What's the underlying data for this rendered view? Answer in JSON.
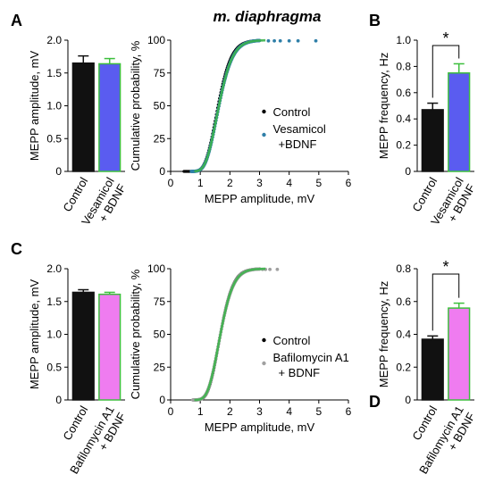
{
  "figure_title": "m. diaphragma",
  "colors": {
    "black_bar": "#111111",
    "blue_bar": "#5a5cf0",
    "pink_bar": "#ef7cf0",
    "bar_edge_green": "#3dbf3d",
    "control_dots": "#000000",
    "vesamicol_dots": "#2f7fa8",
    "bafilomycin_dots": "#a0a0a0",
    "cdf_green": "#3cb44b"
  },
  "chart_data": [
    {
      "id": "A",
      "panel": "A",
      "type": "bar",
      "categories": [
        "Control",
        "Vesamicol\n+ BDNF"
      ],
      "values": [
        1.65,
        1.64
      ],
      "errors": [
        0.11,
        0.08
      ],
      "ylabel": "MEPP amplitude, mV",
      "ylim": [
        0,
        2.0
      ],
      "yticks": [
        "0",
        "0.5",
        "1.0",
        "1.5",
        "2.0"
      ],
      "yticks_values": [
        0,
        0.5,
        1.0,
        1.5,
        2.0
      ]
    },
    {
      "id": "A_cdf",
      "type": "scatter",
      "title": "m. diaphragma",
      "xlabel": "MEPP amplitude, mV",
      "ylabel": "Cumulative probability, %",
      "xlim": [
        0,
        6
      ],
      "ylim": [
        0,
        100
      ],
      "xticks": [
        "0",
        "1",
        "2",
        "3",
        "4",
        "5",
        "6"
      ],
      "yticks": [
        "0",
        "25",
        "50",
        "75",
        "100"
      ],
      "legend": [
        "Control",
        "Vesamicol\n+BDNF"
      ],
      "series": [
        {
          "name": "Control",
          "dist": {
            "mu": 1.6,
            "sigma": 0.35,
            "xmin": 0.45,
            "xmax": 3.0,
            "n": 120
          }
        },
        {
          "name": "Vesamicol +BDNF",
          "dist": {
            "mu": 1.63,
            "sigma": 0.36,
            "xmin": 0.7,
            "xmax": 4.9,
            "n": 120
          },
          "tail": [
            3.3,
            3.5,
            3.7,
            4.0,
            4.3,
            4.9
          ]
        }
      ]
    },
    {
      "id": "B",
      "panel": "B",
      "type": "bar",
      "categories": [
        "Control",
        "Vesamicol\n+ BDNF"
      ],
      "values": [
        0.47,
        0.75
      ],
      "errors": [
        0.05,
        0.07
      ],
      "ylabel": "MEPP frequency, Hz",
      "ylim": [
        0,
        1.0
      ],
      "yticks": [
        "0",
        "0.2",
        "0.4",
        "0.6",
        "0.8",
        "1.0"
      ],
      "yticks_values": [
        0,
        0.2,
        0.4,
        0.6,
        0.8,
        1.0
      ],
      "significance": "*"
    },
    {
      "id": "C",
      "panel": "C",
      "type": "bar",
      "categories": [
        "Control",
        "Bafilomycin A1\n+ BDNF"
      ],
      "values": [
        1.64,
        1.61
      ],
      "errors": [
        0.04,
        0.03
      ],
      "ylabel": "MEPP amplitude, mV",
      "ylim": [
        0,
        2.0
      ],
      "yticks": [
        "0",
        "0.5",
        "1.0",
        "1.5",
        "2.0"
      ],
      "yticks_values": [
        0,
        0.5,
        1.0,
        1.5,
        2.0
      ]
    },
    {
      "id": "C_cdf",
      "type": "scatter",
      "xlabel": "MEPP amplitude, mV",
      "ylabel": "Cumulative probability, %",
      "xlim": [
        0,
        6
      ],
      "ylim": [
        0,
        100
      ],
      "xticks": [
        "0",
        "1",
        "2",
        "3",
        "4",
        "5",
        "6"
      ],
      "yticks": [
        "0",
        "25",
        "50",
        "75",
        "100"
      ],
      "legend": [
        "Control",
        "Bafilomycin A1\n+ BDNF"
      ],
      "series": [
        {
          "name": "Control",
          "dist": {
            "mu": 1.68,
            "sigma": 0.33,
            "xmin": 0.75,
            "xmax": 3.0,
            "n": 120
          }
        },
        {
          "name": "Bafilomycin A1 + BDNF",
          "dist": {
            "mu": 1.68,
            "sigma": 0.34,
            "xmin": 0.75,
            "xmax": 3.6,
            "n": 120
          },
          "tail": [
            3.0,
            3.1,
            3.2,
            3.35,
            3.6
          ]
        }
      ]
    },
    {
      "id": "D",
      "panel": "D",
      "type": "bar",
      "categories": [
        "Control",
        "Bafilomycin A1\n+ BDNF"
      ],
      "values": [
        0.37,
        0.56
      ],
      "errors": [
        0.02,
        0.03
      ],
      "ylabel": "MEPP frequency, Hz",
      "ylim": [
        0,
        0.8
      ],
      "yticks": [
        "0",
        "0.2",
        "0.4",
        "0.6",
        "0.8"
      ],
      "yticks_values": [
        0,
        0.2,
        0.4,
        0.6,
        0.8
      ],
      "significance": "*"
    }
  ]
}
